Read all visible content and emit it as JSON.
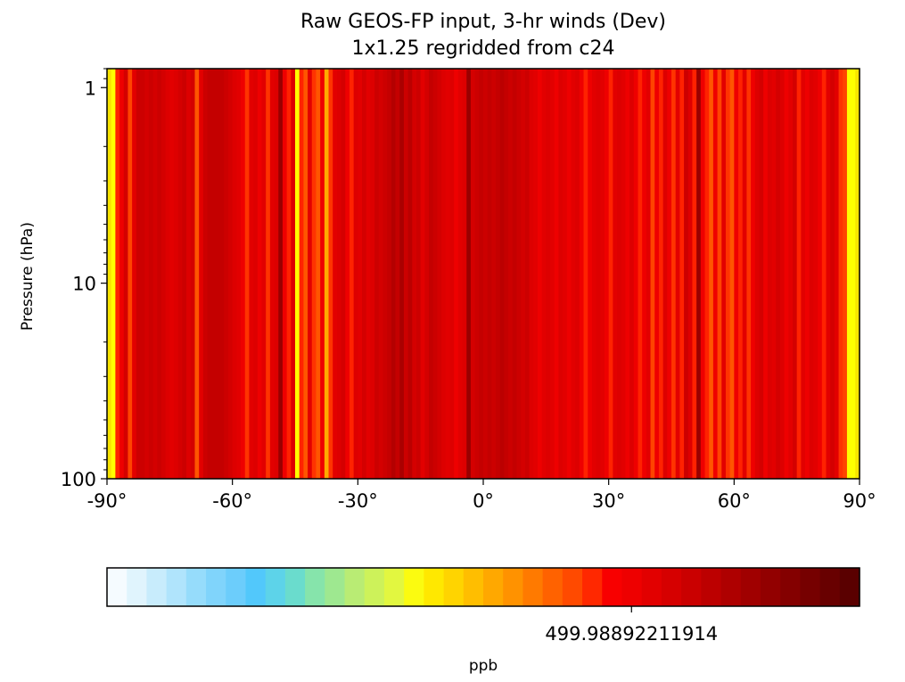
{
  "chart_data": {
    "type": "heatmap",
    "title": "Raw GEOS-FP input, 3-hr winds (Dev)",
    "subtitle": "1x1.25 regridded from c24",
    "xlabel": "",
    "ylabel": "Pressure (hPa)",
    "xlim": [
      -90,
      90
    ],
    "ylim": [
      100,
      0.8
    ],
    "yscale": "log",
    "x_ticks": [
      -90,
      -60,
      -30,
      0,
      30,
      60,
      90
    ],
    "x_tick_labels": [
      "-90°",
      "-60°",
      "-30°",
      "0°",
      "30°",
      "60°",
      "90°"
    ],
    "y_ticks": [
      1,
      10,
      100
    ],
    "y_tick_labels": [
      "1",
      "10",
      "100"
    ],
    "grid": false,
    "bands": [
      {
        "lat": -90,
        "color": "#f8e400"
      },
      {
        "lat": -89,
        "color": "#ffff00"
      },
      {
        "lat": -88,
        "color": "#ff2200"
      },
      {
        "lat": -87,
        "color": "#ee0000"
      },
      {
        "lat": -86,
        "color": "#d40000"
      },
      {
        "lat": -85,
        "color": "#ff4400"
      },
      {
        "lat": -84,
        "color": "#e20000"
      },
      {
        "lat": -83,
        "color": "#cc0000"
      },
      {
        "lat": -82,
        "color": "#cc0000"
      },
      {
        "lat": -81,
        "color": "#d40000"
      },
      {
        "lat": -80,
        "color": "#cc0000"
      },
      {
        "lat": -79,
        "color": "#d40000"
      },
      {
        "lat": -78,
        "color": "#cc0000"
      },
      {
        "lat": -77,
        "color": "#d40000"
      },
      {
        "lat": -76,
        "color": "#dd0000"
      },
      {
        "lat": -75,
        "color": "#e20000"
      },
      {
        "lat": -74,
        "color": "#dd0000"
      },
      {
        "lat": -73,
        "color": "#d40000"
      },
      {
        "lat": -72,
        "color": "#cc0000"
      },
      {
        "lat": -71,
        "color": "#dd0000"
      },
      {
        "lat": -70,
        "color": "#d40000"
      },
      {
        "lat": -69,
        "color": "#ff5500"
      },
      {
        "lat": -68,
        "color": "#e20000"
      },
      {
        "lat": -67,
        "color": "#cc0000"
      },
      {
        "lat": -66,
        "color": "#c40000"
      },
      {
        "lat": -65,
        "color": "#c40000"
      },
      {
        "lat": -64,
        "color": "#c40000"
      },
      {
        "lat": -63,
        "color": "#c40000"
      },
      {
        "lat": -62,
        "color": "#cc0000"
      },
      {
        "lat": -61,
        "color": "#d40000"
      },
      {
        "lat": -60,
        "color": "#dd0000"
      },
      {
        "lat": -59,
        "color": "#e20000"
      },
      {
        "lat": -58,
        "color": "#ee0000"
      },
      {
        "lat": -57,
        "color": "#ff3300"
      },
      {
        "lat": -56,
        "color": "#e20000"
      },
      {
        "lat": -55,
        "color": "#dd0000"
      },
      {
        "lat": -54,
        "color": "#ee0000"
      },
      {
        "lat": -53,
        "color": "#e20000"
      },
      {
        "lat": -52,
        "color": "#ff3300"
      },
      {
        "lat": -51,
        "color": "#e20000"
      },
      {
        "lat": -50,
        "color": "#dd0000"
      },
      {
        "lat": -49,
        "color": "#990000"
      },
      {
        "lat": -48,
        "color": "#ee0000"
      },
      {
        "lat": -47,
        "color": "#ff2200"
      },
      {
        "lat": -46,
        "color": "#dd0000"
      },
      {
        "lat": -45,
        "color": "#ffff00"
      },
      {
        "lat": -44,
        "color": "#ff2200"
      },
      {
        "lat": -43,
        "color": "#ff5500"
      },
      {
        "lat": -42,
        "color": "#e20000"
      },
      {
        "lat": -41,
        "color": "#ff3300"
      },
      {
        "lat": -40,
        "color": "#ff5500"
      },
      {
        "lat": -39,
        "color": "#ee0000"
      },
      {
        "lat": -38,
        "color": "#ffaa00"
      },
      {
        "lat": -37,
        "color": "#ff3300"
      },
      {
        "lat": -36,
        "color": "#e20000"
      },
      {
        "lat": -35,
        "color": "#dd0000"
      },
      {
        "lat": -34,
        "color": "#d40000"
      },
      {
        "lat": -33,
        "color": "#ee0000"
      },
      {
        "lat": -32,
        "color": "#ff2200"
      },
      {
        "lat": -31,
        "color": "#dd0000"
      },
      {
        "lat": -30,
        "color": "#e20000"
      },
      {
        "lat": -29,
        "color": "#d40000"
      },
      {
        "lat": -28,
        "color": "#e20000"
      },
      {
        "lat": -27,
        "color": "#dd0000"
      },
      {
        "lat": -26,
        "color": "#cc0000"
      },
      {
        "lat": -25,
        "color": "#d40000"
      },
      {
        "lat": -24,
        "color": "#cc0000"
      },
      {
        "lat": -23,
        "color": "#c40000"
      },
      {
        "lat": -22,
        "color": "#b40000"
      },
      {
        "lat": -21,
        "color": "#c40000"
      },
      {
        "lat": -20,
        "color": "#aa0000"
      },
      {
        "lat": -19,
        "color": "#cc0000"
      },
      {
        "lat": -18,
        "color": "#bb0000"
      },
      {
        "lat": -17,
        "color": "#d40000"
      },
      {
        "lat": -16,
        "color": "#cc0000"
      },
      {
        "lat": -15,
        "color": "#e20000"
      },
      {
        "lat": -14,
        "color": "#d40000"
      },
      {
        "lat": -13,
        "color": "#c40000"
      },
      {
        "lat": -12,
        "color": "#cc0000"
      },
      {
        "lat": -11,
        "color": "#d40000"
      },
      {
        "lat": -10,
        "color": "#dd0000"
      },
      {
        "lat": -9,
        "color": "#e20000"
      },
      {
        "lat": -8,
        "color": "#dd0000"
      },
      {
        "lat": -7,
        "color": "#ee0000"
      },
      {
        "lat": -6,
        "color": "#e20000"
      },
      {
        "lat": -5,
        "color": "#dd0000"
      },
      {
        "lat": -4,
        "color": "#990000"
      },
      {
        "lat": -3,
        "color": "#d40000"
      },
      {
        "lat": -2,
        "color": "#cc0000"
      },
      {
        "lat": -1,
        "color": "#c40000"
      },
      {
        "lat": 0,
        "color": "#cc0000"
      },
      {
        "lat": 1,
        "color": "#c40000"
      },
      {
        "lat": 2,
        "color": "#cc0000"
      },
      {
        "lat": 3,
        "color": "#c40000"
      },
      {
        "lat": 4,
        "color": "#bb0000"
      },
      {
        "lat": 5,
        "color": "#c40000"
      },
      {
        "lat": 6,
        "color": "#cc0000"
      },
      {
        "lat": 7,
        "color": "#c40000"
      },
      {
        "lat": 8,
        "color": "#cc0000"
      },
      {
        "lat": 9,
        "color": "#d40000"
      },
      {
        "lat": 10,
        "color": "#cc0000"
      },
      {
        "lat": 11,
        "color": "#dd0000"
      },
      {
        "lat": 12,
        "color": "#e20000"
      },
      {
        "lat": 13,
        "color": "#ee0000"
      },
      {
        "lat": 14,
        "color": "#e20000"
      },
      {
        "lat": 15,
        "color": "#dd0000"
      },
      {
        "lat": 16,
        "color": "#e20000"
      },
      {
        "lat": 17,
        "color": "#ee0000"
      },
      {
        "lat": 18,
        "color": "#dd0000"
      },
      {
        "lat": 19,
        "color": "#e20000"
      },
      {
        "lat": 20,
        "color": "#ee0000"
      },
      {
        "lat": 21,
        "color": "#e20000"
      },
      {
        "lat": 22,
        "color": "#dd0000"
      },
      {
        "lat": 23,
        "color": "#ee0000"
      },
      {
        "lat": 24,
        "color": "#ff2200"
      },
      {
        "lat": 25,
        "color": "#ee0000"
      },
      {
        "lat": 26,
        "color": "#e20000"
      },
      {
        "lat": 27,
        "color": "#dd0000"
      },
      {
        "lat": 28,
        "color": "#e20000"
      },
      {
        "lat": 29,
        "color": "#ee0000"
      },
      {
        "lat": 30,
        "color": "#ff2200"
      },
      {
        "lat": 31,
        "color": "#e20000"
      },
      {
        "lat": 32,
        "color": "#dd0000"
      },
      {
        "lat": 33,
        "color": "#e20000"
      },
      {
        "lat": 34,
        "color": "#ee0000"
      },
      {
        "lat": 35,
        "color": "#dd0000"
      },
      {
        "lat": 36,
        "color": "#ee0000"
      },
      {
        "lat": 37,
        "color": "#ff2200"
      },
      {
        "lat": 38,
        "color": "#ee0000"
      },
      {
        "lat": 39,
        "color": "#e20000"
      },
      {
        "lat": 40,
        "color": "#ff4400"
      },
      {
        "lat": 41,
        "color": "#ee0000"
      },
      {
        "lat": 42,
        "color": "#ff2200"
      },
      {
        "lat": 43,
        "color": "#dd0000"
      },
      {
        "lat": 44,
        "color": "#ee0000"
      },
      {
        "lat": 45,
        "color": "#ff3300"
      },
      {
        "lat": 46,
        "color": "#e20000"
      },
      {
        "lat": 47,
        "color": "#ff2200"
      },
      {
        "lat": 48,
        "color": "#cc0000"
      },
      {
        "lat": 49,
        "color": "#dd0000"
      },
      {
        "lat": 50,
        "color": "#ff2200"
      },
      {
        "lat": 51,
        "color": "#990000"
      },
      {
        "lat": 52,
        "color": "#ee0000"
      },
      {
        "lat": 53,
        "color": "#ff2200"
      },
      {
        "lat": 54,
        "color": "#ff5500"
      },
      {
        "lat": 55,
        "color": "#ee0000"
      },
      {
        "lat": 56,
        "color": "#ff4400"
      },
      {
        "lat": 57,
        "color": "#e20000"
      },
      {
        "lat": 58,
        "color": "#ff3300"
      },
      {
        "lat": 59,
        "color": "#ff5500"
      },
      {
        "lat": 60,
        "color": "#ee0000"
      },
      {
        "lat": 61,
        "color": "#ff2200"
      },
      {
        "lat": 62,
        "color": "#e20000"
      },
      {
        "lat": 63,
        "color": "#ff3300"
      },
      {
        "lat": 64,
        "color": "#ee0000"
      },
      {
        "lat": 65,
        "color": "#dd0000"
      },
      {
        "lat": 66,
        "color": "#d40000"
      },
      {
        "lat": 67,
        "color": "#ee0000"
      },
      {
        "lat": 68,
        "color": "#dd0000"
      },
      {
        "lat": 69,
        "color": "#e20000"
      },
      {
        "lat": 70,
        "color": "#d40000"
      },
      {
        "lat": 71,
        "color": "#dd0000"
      },
      {
        "lat": 72,
        "color": "#ee0000"
      },
      {
        "lat": 73,
        "color": "#e20000"
      },
      {
        "lat": 74,
        "color": "#d40000"
      },
      {
        "lat": 75,
        "color": "#ff2200"
      },
      {
        "lat": 76,
        "color": "#e20000"
      },
      {
        "lat": 77,
        "color": "#ee0000"
      },
      {
        "lat": 78,
        "color": "#dd0000"
      },
      {
        "lat": 79,
        "color": "#e20000"
      },
      {
        "lat": 80,
        "color": "#ee0000"
      },
      {
        "lat": 81,
        "color": "#ff2200"
      },
      {
        "lat": 82,
        "color": "#e20000"
      },
      {
        "lat": 83,
        "color": "#d40000"
      },
      {
        "lat": 84,
        "color": "#e20000"
      },
      {
        "lat": 85,
        "color": "#ff3300"
      },
      {
        "lat": 86,
        "color": "#ff4400"
      },
      {
        "lat": 87,
        "color": "#ffff00"
      },
      {
        "lat": 88,
        "color": "#ffff00"
      },
      {
        "lat": 89,
        "color": "#f8e400"
      }
    ],
    "colorbar": {
      "label": "ppb",
      "tick_value": "499.98892211914",
      "tick_fraction": 0.697,
      "colors": [
        "#f5fbff",
        "#e0f4fd",
        "#c8ecfc",
        "#b0e4fc",
        "#96dcfb",
        "#80d4fb",
        "#6ccdfb",
        "#52c8fb",
        "#5dd3e9",
        "#6adccd",
        "#86e4ab",
        "#9ee890",
        "#b9ec74",
        "#cdf25a",
        "#e2f740",
        "#fbfb10",
        "#ffe800",
        "#ffd400",
        "#ffbe00",
        "#ffa800",
        "#ff9200",
        "#ff7a00",
        "#ff6200",
        "#ff4a00",
        "#ff2800",
        "#f80000",
        "#ee0000",
        "#e20000",
        "#d60000",
        "#ca0000",
        "#bc0000",
        "#ae0000",
        "#a00000",
        "#920000",
        "#840000",
        "#760000",
        "#680000",
        "#5a0000"
      ]
    }
  }
}
